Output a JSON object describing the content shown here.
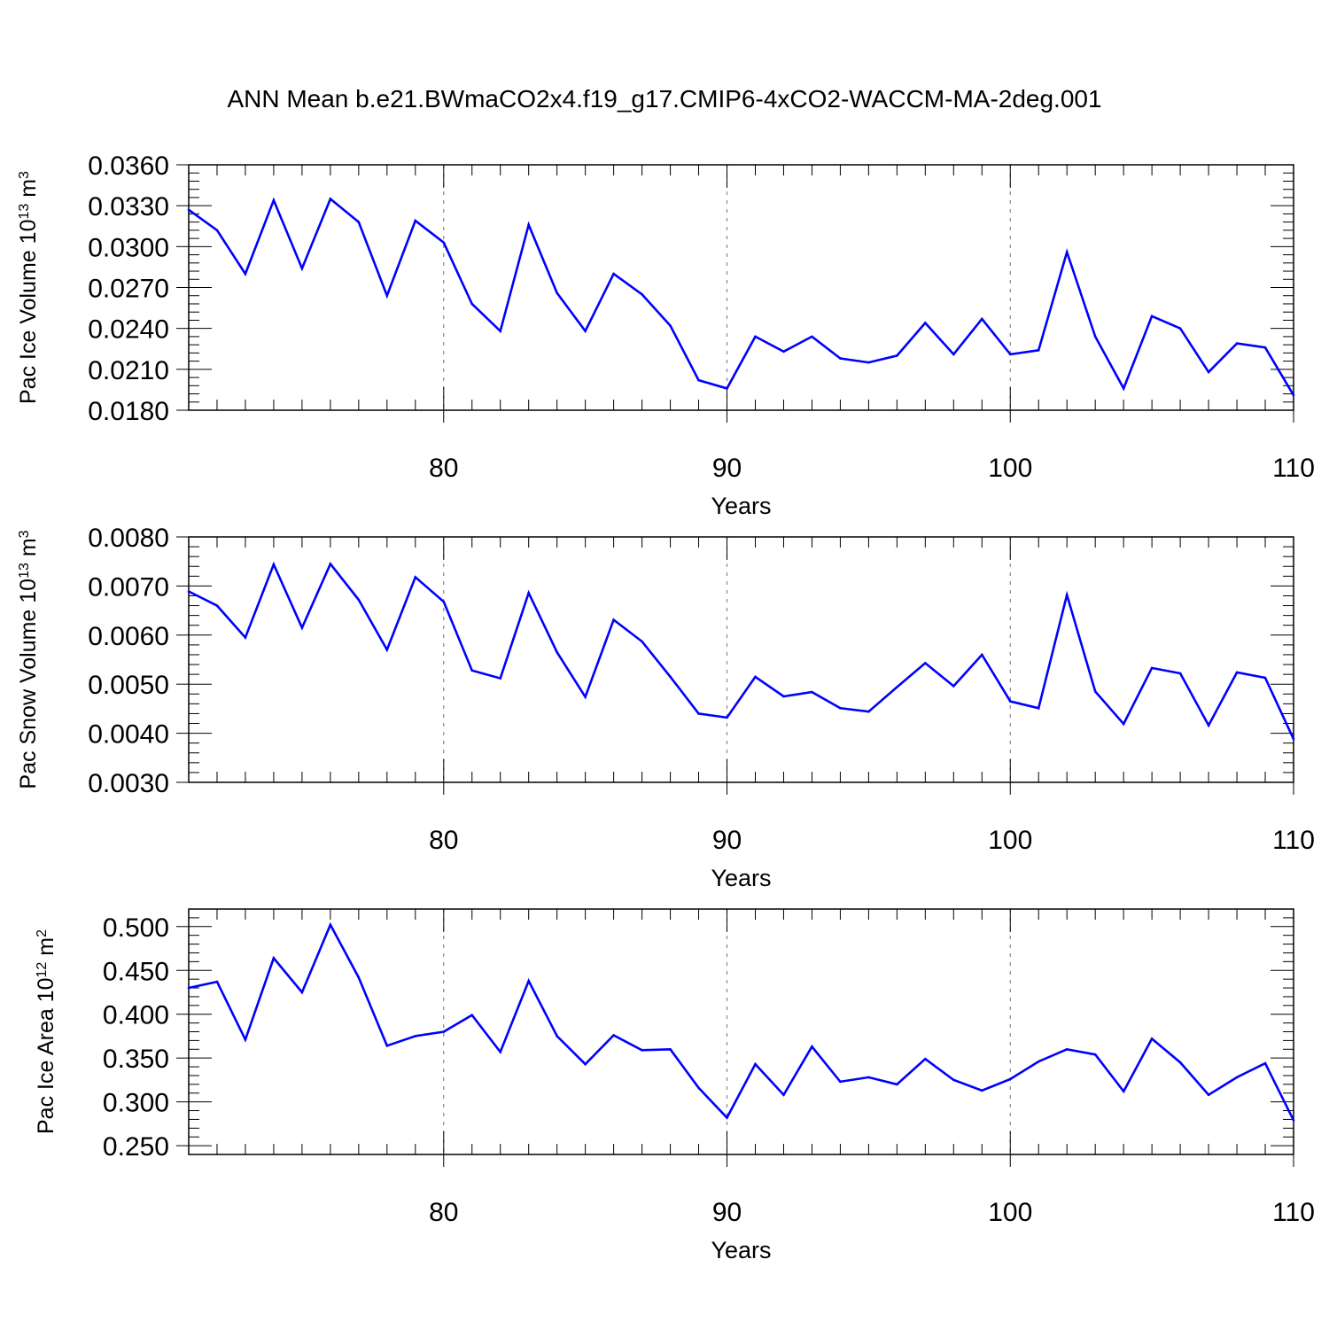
{
  "title": "ANN Mean b.e21.BWmaCO2x4.f19_g17.CMIP6-4xCO2-WACCM-MA-2deg.001",
  "colors": {
    "line": "#0000ff",
    "axis": "#000000",
    "grid": "#888888"
  },
  "chart_data": [
    {
      "type": "line",
      "xlabel": "Years",
      "ylabel": {
        "prefix": "Pac Ice Volume 10",
        "exp": "13",
        "unit": " m",
        "unit_exp": "3"
      },
      "xlim": [
        71,
        110
      ],
      "ylim": [
        0.018,
        0.036
      ],
      "xticks": [
        80,
        90,
        100,
        110
      ],
      "yticks": [
        "0.0180",
        "0.0210",
        "0.0240",
        "0.0270",
        "0.0300",
        "0.0330",
        "0.0360"
      ],
      "grid": "vertical dashed at labeled x ticks",
      "x": [
        71,
        72,
        73,
        74,
        75,
        76,
        77,
        78,
        79,
        80,
        81,
        82,
        83,
        84,
        85,
        86,
        87,
        88,
        89,
        90,
        91,
        92,
        93,
        94,
        95,
        96,
        97,
        98,
        99,
        100,
        101,
        102,
        103,
        104,
        105,
        106,
        107,
        108,
        109,
        110
      ],
      "series": [
        {
          "values": [
            0.0327,
            0.0312,
            0.028,
            0.0334,
            0.0284,
            0.0335,
            0.0318,
            0.0264,
            0.0319,
            0.0303,
            0.0258,
            0.0238,
            0.0316,
            0.0266,
            0.0238,
            0.028,
            0.0265,
            0.0242,
            0.0202,
            0.0196,
            0.0234,
            0.0223,
            0.0234,
            0.0218,
            0.0215,
            0.022,
            0.0244,
            0.0221,
            0.0247,
            0.0221,
            0.0224,
            0.0296,
            0.0234,
            0.0196,
            0.0249,
            0.024,
            0.0208,
            0.0229,
            0.0226,
            0.0191
          ]
        }
      ]
    },
    {
      "type": "line",
      "xlabel": "Years",
      "ylabel": {
        "prefix": "Pac Snow Volume 10",
        "exp": "13",
        "unit": " m",
        "unit_exp": "3"
      },
      "xlim": [
        71,
        110
      ],
      "ylim": [
        0.003,
        0.008
      ],
      "xticks": [
        80,
        90,
        100,
        110
      ],
      "yticks": [
        "0.0030",
        "0.0040",
        "0.0050",
        "0.0060",
        "0.0070",
        "0.0080"
      ],
      "grid": "vertical dashed at labeled x ticks",
      "x": [
        71,
        72,
        73,
        74,
        75,
        76,
        77,
        78,
        79,
        80,
        81,
        82,
        83,
        84,
        85,
        86,
        87,
        88,
        89,
        90,
        91,
        92,
        93,
        94,
        95,
        96,
        97,
        98,
        99,
        100,
        101,
        102,
        103,
        104,
        105,
        106,
        107,
        108,
        109,
        110
      ],
      "series": [
        {
          "values": [
            0.00689,
            0.0066,
            0.00595,
            0.00744,
            0.00615,
            0.00745,
            0.00672,
            0.0057,
            0.00718,
            0.00668,
            0.00528,
            0.00512,
            0.00686,
            0.00565,
            0.00474,
            0.00631,
            0.00587,
            0.00515,
            0.0044,
            0.00432,
            0.00515,
            0.00475,
            0.00484,
            0.00451,
            0.00444,
            0.00494,
            0.00543,
            0.00496,
            0.0056,
            0.00465,
            0.00451,
            0.00682,
            0.00485,
            0.00419,
            0.00533,
            0.00522,
            0.00416,
            0.00524,
            0.00513,
            0.00388
          ]
        }
      ]
    },
    {
      "type": "line",
      "xlabel": "Years",
      "ylabel": {
        "prefix": "Pac Ice Area 10",
        "exp": "12",
        "unit": " m",
        "unit_exp": "2"
      },
      "xlim": [
        71,
        110
      ],
      "ylim": [
        0.24,
        0.52
      ],
      "xticks": [
        80,
        90,
        100,
        110
      ],
      "yticks": [
        "0.250",
        "0.300",
        "0.350",
        "0.400",
        "0.450",
        "0.500"
      ],
      "grid": "vertical dashed at labeled x ticks",
      "x": [
        71,
        72,
        73,
        74,
        75,
        76,
        77,
        78,
        79,
        80,
        81,
        82,
        83,
        84,
        85,
        86,
        87,
        88,
        89,
        90,
        91,
        92,
        93,
        94,
        95,
        96,
        97,
        98,
        99,
        100,
        101,
        102,
        103,
        104,
        105,
        106,
        107,
        108,
        109,
        110
      ],
      "series": [
        {
          "values": [
            0.43,
            0.437,
            0.371,
            0.464,
            0.425,
            0.502,
            0.442,
            0.364,
            0.375,
            0.38,
            0.399,
            0.357,
            0.438,
            0.375,
            0.343,
            0.376,
            0.359,
            0.36,
            0.316,
            0.282,
            0.343,
            0.308,
            0.363,
            0.323,
            0.328,
            0.32,
            0.349,
            0.325,
            0.313,
            0.326,
            0.346,
            0.36,
            0.354,
            0.312,
            0.372,
            0.345,
            0.308,
            0.328,
            0.344,
            0.279
          ]
        }
      ]
    }
  ]
}
